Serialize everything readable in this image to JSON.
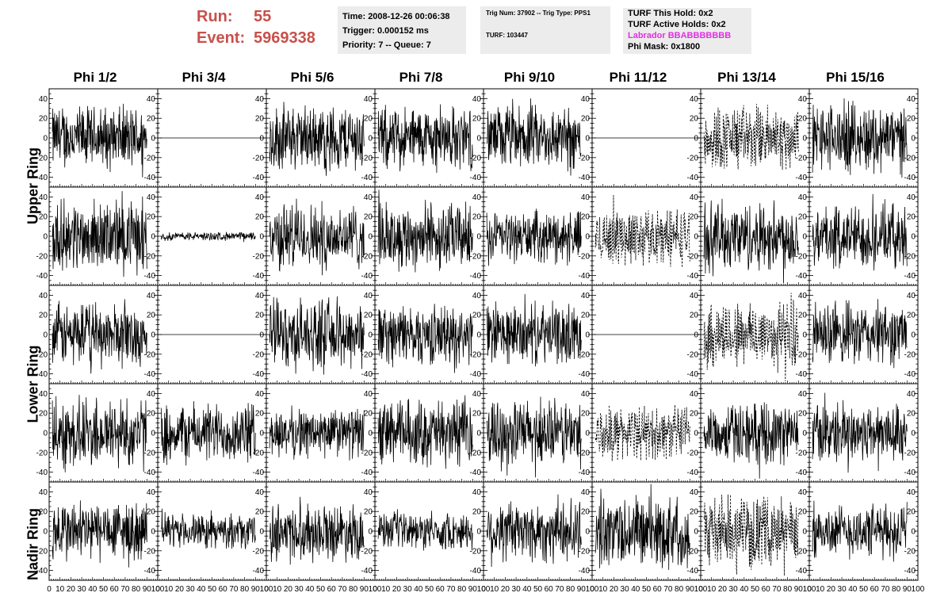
{
  "header": {
    "run_label": "Run:",
    "run_value": "55",
    "event_label": "Event:",
    "event_value": "5969338"
  },
  "info_time": {
    "time": "Time: 2008-12-26 00:06:38",
    "trigger": "Trigger: 0.000152 ms",
    "priority": "Priority: 7 -- Queue: 7"
  },
  "info_trig": {
    "trig": "Trig Num: 37902 -- Trig Type: PPS1",
    "turf": "TURF: 103447"
  },
  "info_turf": {
    "this_hold": "TURF This Hold: 0x2",
    "active_holds": "TURF Active Holds: 0x2",
    "labrador": "Labrador BBABBBBBBB",
    "phi_mask": "Phi Mask: 0x1800"
  },
  "colors": {
    "header_red": "#c8504a",
    "labrador_magenta": "#e030e0",
    "box_gray": "#ececec"
  },
  "chart_data": {
    "type": "line",
    "columns": [
      "Phi 1/2",
      "Phi 3/4",
      "Phi 5/6",
      "Phi 7/8",
      "Phi 9/10",
      "Phi 11/12",
      "Phi 13/14",
      "Phi 15/16"
    ],
    "rows": [
      "Upper Ring",
      "Upper Ring",
      "Lower Ring",
      "Lower Ring",
      "Nadir Ring"
    ],
    "row_labels": [
      "Upper Ring",
      "Lower Ring",
      "Nadir Ring"
    ],
    "xlim": [
      0,
      100
    ],
    "ylim": [
      -50,
      50
    ],
    "x_ticks": [
      0,
      10,
      20,
      30,
      40,
      50,
      60,
      70,
      80,
      90,
      100
    ],
    "x_tick_labels": [
      "0",
      "10",
      "20",
      "30",
      "40",
      "50",
      "60",
      "70",
      "80",
      "90",
      "100"
    ],
    "y_ticks": [
      -40,
      -20,
      0,
      20,
      40
    ],
    "y_tick_labels": [
      "-40",
      "-20",
      "0",
      "20",
      "40"
    ],
    "panels": [
      [
        {
          "style": "solid",
          "amp": 38
        },
        {
          "style": "flat",
          "amp": 0
        },
        {
          "style": "solid",
          "amp": 40
        },
        {
          "style": "solid",
          "amp": 38
        },
        {
          "style": "solid",
          "amp": 38
        },
        {
          "style": "flat",
          "amp": 0
        },
        {
          "style": "dashed",
          "amp": 40
        },
        {
          "style": "solid",
          "amp": 42
        }
      ],
      [
        {
          "style": "solid",
          "amp": 42
        },
        {
          "style": "solid",
          "amp": 5
        },
        {
          "style": "solid",
          "amp": 40
        },
        {
          "style": "solid",
          "amp": 40
        },
        {
          "style": "solid",
          "amp": 30
        },
        {
          "style": "dashed",
          "amp": 35
        },
        {
          "style": "solid",
          "amp": 42
        },
        {
          "style": "solid",
          "amp": 38
        }
      ],
      [
        {
          "style": "solid",
          "amp": 38
        },
        {
          "style": "flat",
          "amp": 0
        },
        {
          "style": "solid",
          "amp": 42
        },
        {
          "style": "solid",
          "amp": 36
        },
        {
          "style": "solid",
          "amp": 36
        },
        {
          "style": "flat",
          "amp": 0
        },
        {
          "style": "dashed",
          "amp": 42
        },
        {
          "style": "solid",
          "amp": 38
        }
      ],
      [
        {
          "style": "solid",
          "amp": 44
        },
        {
          "style": "solid",
          "amp": 36
        },
        {
          "style": "solid",
          "amp": 30
        },
        {
          "style": "solid",
          "amp": 40
        },
        {
          "style": "solid",
          "amp": 40
        },
        {
          "style": "dashed",
          "amp": 32
        },
        {
          "style": "solid",
          "amp": 36
        },
        {
          "style": "solid",
          "amp": 36
        }
      ],
      [
        {
          "style": "solid",
          "amp": 38
        },
        {
          "style": "solid",
          "amp": 20
        },
        {
          "style": "solid",
          "amp": 34
        },
        {
          "style": "solid",
          "amp": 22
        },
        {
          "style": "solid",
          "amp": 38
        },
        {
          "style": "solid",
          "amp": 44
        },
        {
          "style": "dashed",
          "amp": 42
        },
        {
          "style": "solid",
          "amp": 32
        }
      ]
    ]
  }
}
